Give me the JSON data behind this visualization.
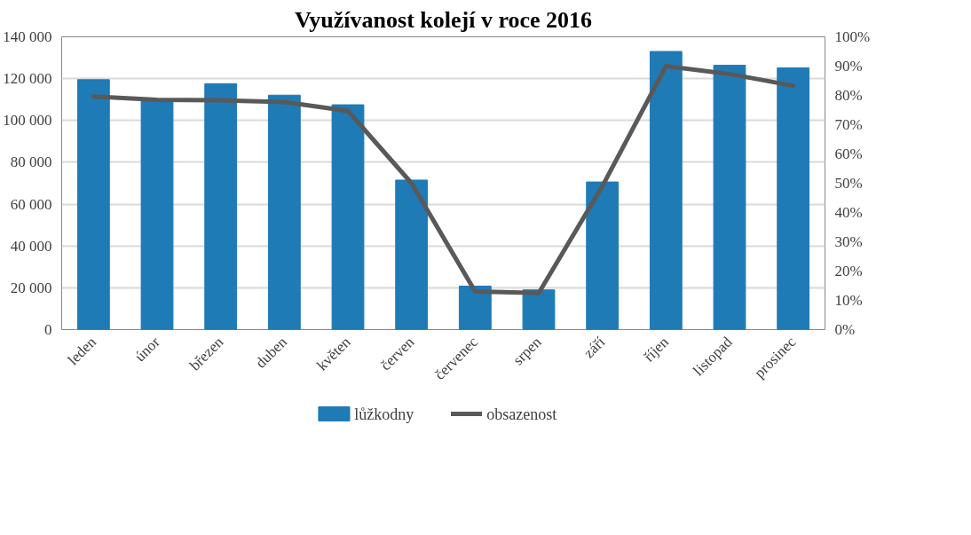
{
  "chart_data": {
    "type": "bar",
    "title": "Využívanost kolejí v roce 2016",
    "categories": [
      "leden",
      "únor",
      "březen",
      "duben",
      "květen",
      "červen",
      "červenec",
      "srpen",
      "září",
      "říjen",
      "listopad",
      "prosinec"
    ],
    "series": [
      {
        "name": "lůžkodny",
        "type": "bar",
        "color": "#1f7bb6",
        "values": [
          119500,
          109500,
          117600,
          112100,
          107500,
          71500,
          20800,
          19000,
          70600,
          133000,
          126400,
          125200
        ]
      },
      {
        "name": "obsazenost",
        "type": "line",
        "axis": "y2",
        "color": "#595959",
        "values": [
          79.6,
          78.5,
          78.3,
          77.7,
          74.7,
          50,
          13,
          12.5,
          49,
          90,
          87.3,
          83.3
        ]
      }
    ],
    "ylim": [
      0,
      140000
    ],
    "yticks": [
      {
        "value": 0,
        "label": "0"
      },
      {
        "value": 20000,
        "label": "20 000"
      },
      {
        "value": 40000,
        "label": "40 000"
      },
      {
        "value": 60000,
        "label": "60 000"
      },
      {
        "value": 80000,
        "label": "80 000"
      },
      {
        "value": 100000,
        "label": "100 000"
      },
      {
        "value": 120000,
        "label": "120 000"
      },
      {
        "value": 140000,
        "label": "140 000"
      }
    ],
    "y2lim": [
      0,
      100
    ],
    "y2ticks": [
      {
        "value": 0,
        "label": "0%"
      },
      {
        "value": 10,
        "label": "10%"
      },
      {
        "value": 20,
        "label": "20%"
      },
      {
        "value": 30,
        "label": "30%"
      },
      {
        "value": 40,
        "label": "40%"
      },
      {
        "value": 50,
        "label": "50%"
      },
      {
        "value": 60,
        "label": "60%"
      },
      {
        "value": 70,
        "label": "70%"
      },
      {
        "value": 80,
        "label": "80%"
      },
      {
        "value": 90,
        "label": "90%"
      },
      {
        "value": 100,
        "label": "100%"
      }
    ],
    "grid": "y",
    "legend": "bottom",
    "marker": "none",
    "line_style": "solid"
  }
}
